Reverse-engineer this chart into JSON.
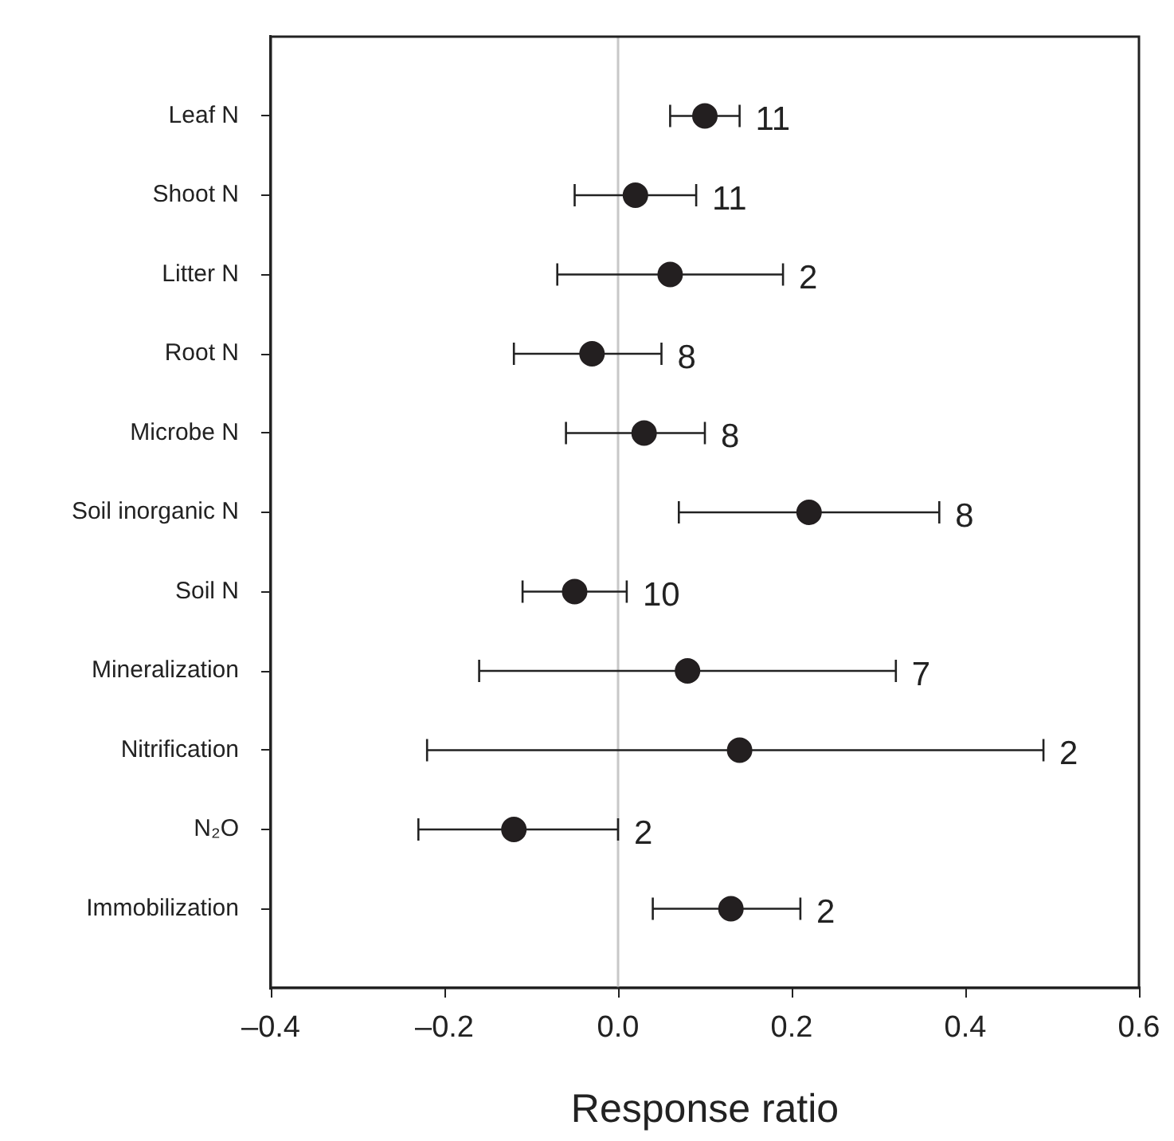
{
  "chart_data": {
    "type": "scatter",
    "orientation": "horizontal",
    "xlabel": "Response ratio",
    "categories": [
      "Leaf N",
      "Shoot N",
      "Litter N",
      "Root N",
      "Microbe N",
      "Soil inorganic N",
      "Soil N",
      "Mineralization",
      "Nitrification",
      "N₂O",
      "Immobilization"
    ],
    "values": [
      0.1,
      0.02,
      0.06,
      -0.03,
      0.03,
      0.22,
      -0.05,
      0.08,
      0.14,
      -0.12,
      0.13
    ],
    "errors": [
      [
        0.06,
        0.14
      ],
      [
        -0.05,
        0.09
      ],
      [
        -0.07,
        0.19
      ],
      [
        -0.12,
        0.05
      ],
      [
        -0.06,
        0.1
      ],
      [
        0.07,
        0.37
      ],
      [
        -0.11,
        0.01
      ],
      [
        -0.16,
        0.32
      ],
      [
        -0.22,
        0.49
      ],
      [
        -0.23,
        0.0
      ],
      [
        0.04,
        0.21
      ]
    ],
    "color": "#231f20",
    "marker": "circle",
    "xlim": [
      -0.4,
      0.6
    ],
    "xticks": [
      {
        "value": -0.4,
        "label": "–0.4"
      },
      {
        "value": -0.2,
        "label": "–0.2"
      },
      {
        "value": 0,
        "label": "0.0"
      },
      0.2,
      0.4,
      0.6
    ],
    "ref_lines": [
      {
        "axis": "x",
        "value": 0,
        "color": "#c8c8c8"
      }
    ],
    "annotations": [
      "11",
      "11",
      "2",
      "8",
      "8",
      "8",
      "10",
      "7",
      "2",
      "2",
      "2"
    ],
    "grid": false,
    "legend": false
  }
}
